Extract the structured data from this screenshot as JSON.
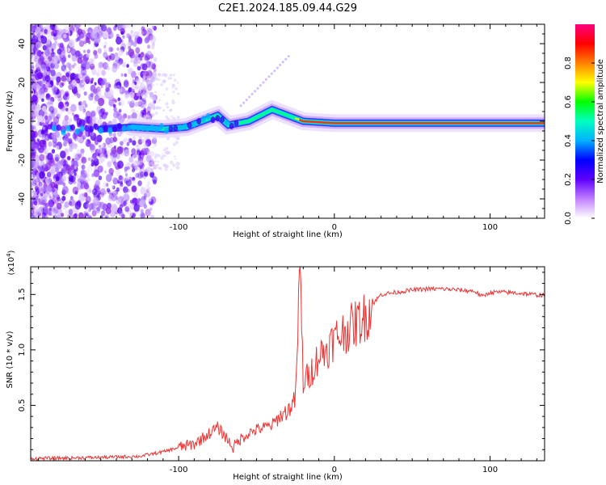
{
  "page": {
    "title": "C2E1.2024.185.09.44.G29"
  },
  "chart_data": [
    {
      "type": "heatmap",
      "xlabel": "Height of straight line (km)",
      "ylabel": "Frequency (Hz)",
      "xlim": [
        -195,
        135
      ],
      "ylim": [
        -50,
        50
      ],
      "x_ticks": [
        -100,
        0,
        100
      ],
      "y_ticks": [
        -40,
        -20,
        0,
        20,
        40
      ],
      "colorbar": {
        "label": "Normalized spectral amplitude",
        "range": [
          0,
          1
        ],
        "ticks": [
          "0.0",
          "0.2",
          "0.4",
          "0.6",
          "0.8"
        ],
        "colors": [
          "#ffffff",
          "#c080ff",
          "#6000ff",
          "#0000ff",
          "#00b0ff",
          "#00ffc0",
          "#00ff00",
          "#ffff00",
          "#ff8000",
          "#ff0000",
          "#ff0080"
        ]
      },
      "signal_track": [
        {
          "x": -195,
          "y": -5
        },
        {
          "x": -150,
          "y": -4
        },
        {
          "x": -130,
          "y": -3
        },
        {
          "x": -110,
          "y": -4
        },
        {
          "x": -95,
          "y": -3
        },
        {
          "x": -85,
          "y": 0
        },
        {
          "x": -75,
          "y": 3
        },
        {
          "x": -68,
          "y": -2
        },
        {
          "x": -55,
          "y": 0
        },
        {
          "x": -40,
          "y": 6
        },
        {
          "x": -30,
          "y": 3
        },
        {
          "x": -20,
          "y": 0
        },
        {
          "x": 0,
          "y": -1
        },
        {
          "x": 50,
          "y": -1
        },
        {
          "x": 100,
          "y": -1
        },
        {
          "x": 135,
          "y": -1
        }
      ]
    },
    {
      "type": "line",
      "xlabel": "Height of straight line (km)",
      "ylabel": "SNR (10 * v/v)",
      "y_multiplier": "(x10",
      "y_multiplier_exp": "4",
      "xlim": [
        -195,
        135
      ],
      "ylim": [
        0,
        1.75
      ],
      "x_ticks": [
        -100,
        0,
        100
      ],
      "y_ticks": [
        0.5,
        1.0,
        1.5
      ],
      "line_color": "#ee3333",
      "series": [
        {
          "x": [
            -195,
            -150,
            -125,
            -110,
            -100,
            -90,
            -80,
            -75,
            -70,
            -65,
            -60,
            -55,
            -50,
            -45,
            -40,
            -35,
            -30,
            -25,
            -22,
            -20,
            -15,
            -10,
            -5,
            0,
            5,
            10,
            15,
            20,
            25,
            30,
            40,
            50,
            60,
            70,
            80,
            90,
            95,
            100,
            110,
            120,
            135
          ],
          "y": [
            0.02,
            0.03,
            0.04,
            0.08,
            0.12,
            0.15,
            0.25,
            0.3,
            0.22,
            0.12,
            0.2,
            0.25,
            0.28,
            0.3,
            0.32,
            0.4,
            0.45,
            0.55,
            1.75,
            0.7,
            0.8,
            0.95,
            1.0,
            1.1,
            1.15,
            1.2,
            1.25,
            1.3,
            1.42,
            1.5,
            1.52,
            1.54,
            1.55,
            1.55,
            1.54,
            1.53,
            1.48,
            1.52,
            1.52,
            1.51,
            1.49
          ]
        }
      ]
    }
  ]
}
